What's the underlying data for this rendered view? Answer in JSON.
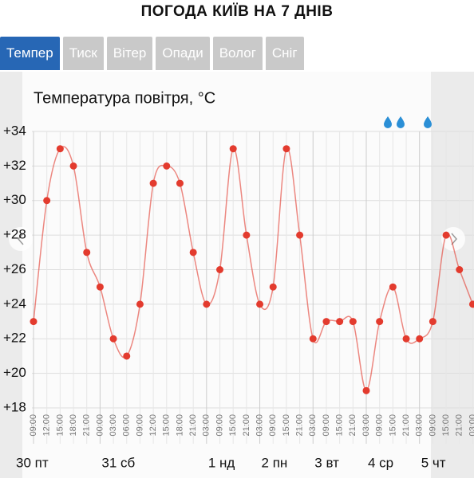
{
  "header": {
    "title": "ПОГОДА КИЇВ НА 7 ДНІВ"
  },
  "tabs": [
    "Темпер",
    "Тиск",
    "Вітер",
    "Опади",
    "Волог",
    "Сніг"
  ],
  "chart_data": {
    "type": "line",
    "title": "Температура повітря, °C",
    "categories": [
      "09:00",
      "12:00",
      "15:00",
      "18:00",
      "21:00",
      "00:00",
      "03:00",
      "06:00",
      "09:00",
      "12:00",
      "15:00",
      "18:00",
      "21:00",
      "03:00",
      "09:00",
      "15:00",
      "21:00",
      "03:00",
      "09:00",
      "15:00",
      "21:00",
      "03:00",
      "09:00",
      "15:00",
      "21:00",
      "03:00",
      "09:00",
      "15:00",
      "21:00",
      "03:00",
      "09:00",
      "15:00",
      "21:00",
      "03:00"
    ],
    "days": [
      "30 пт",
      null,
      null,
      null,
      null,
      "31 сб",
      null,
      null,
      null,
      null,
      null,
      null,
      null,
      "1 нд",
      null,
      null,
      null,
      "2 пн",
      null,
      null,
      null,
      "3 вт",
      null,
      null,
      null,
      "4 ср",
      null,
      null,
      null,
      "5 чт",
      null,
      null,
      null,
      null
    ],
    "series": [
      {
        "name": "Температура",
        "color": "#e33b2e",
        "values": [
          23,
          30,
          33,
          32,
          27,
          25,
          22,
          21,
          24,
          31,
          32,
          31,
          27,
          24,
          26,
          33,
          28,
          24,
          25,
          33,
          28,
          22,
          23,
          23,
          23,
          19,
          23,
          25,
          22,
          22,
          23,
          28,
          26,
          24
        ]
      }
    ],
    "ylim": [
      18,
      34
    ],
    "yticks": [
      {
        "value": 18,
        "label": "+18"
      },
      {
        "value": 20,
        "label": "+20"
      },
      {
        "value": 22,
        "label": "+22"
      },
      {
        "value": 24,
        "label": "+24"
      },
      {
        "value": 26,
        "label": "+26"
      },
      {
        "value": 28,
        "label": "+28"
      },
      {
        "value": 30,
        "label": "+30"
      },
      {
        "value": 32,
        "label": "+32"
      },
      {
        "value": 34,
        "label": "+34"
      }
    ],
    "grid": true
  }
}
